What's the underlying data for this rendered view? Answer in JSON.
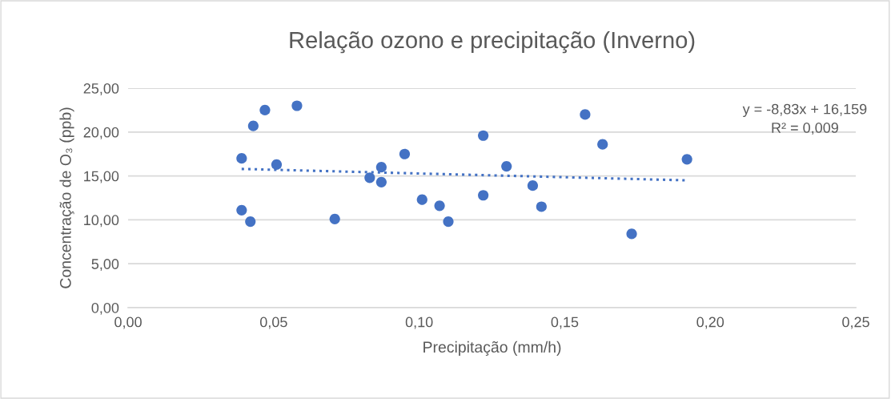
{
  "chart_data": {
    "type": "scatter",
    "title": "Relação ozono e precipitação (Inverno)",
    "xlabel": "Precipitação (mm/h)",
    "ylabel": "Concentração de O₃ (ppb)",
    "series": [
      {
        "color": "#4472c4",
        "marker": "circle",
        "x": [
          0.039,
          0.047,
          0.043,
          0.058,
          0.051,
          0.039,
          0.042,
          0.071,
          0.083,
          0.087,
          0.087,
          0.095,
          0.101,
          0.107,
          0.11,
          0.122,
          0.122,
          0.13,
          0.139,
          0.142,
          0.157,
          0.163,
          0.173,
          0.192
        ],
        "values": [
          17.0,
          22.5,
          20.7,
          23.0,
          16.3,
          11.1,
          9.8,
          10.1,
          14.8,
          16.0,
          14.3,
          17.5,
          12.3,
          11.6,
          9.8,
          19.6,
          12.8,
          16.1,
          13.9,
          11.5,
          22.0,
          18.6,
          8.4,
          16.9
        ]
      },
      {
        "type": "line",
        "color": "#4472c4",
        "line_style": "dotted",
        "x": [
          0.039,
          0.192
        ],
        "values": [
          15.8,
          14.5
        ]
      }
    ],
    "annotations": [
      "y = -8,83x + 16,159\nR² = 0,009"
    ],
    "xlim": [
      0,
      0.25
    ],
    "ylim": [
      0,
      25
    ],
    "xticks": [
      {
        "value": 0,
        "label": "0,00"
      },
      {
        "value": 0.05,
        "label": "0,05"
      },
      {
        "value": 0.1,
        "label": "0,10"
      },
      {
        "value": 0.15,
        "label": "0,15"
      },
      {
        "value": 0.2,
        "label": "0,20"
      },
      {
        "value": 0.25,
        "label": "0,25"
      }
    ],
    "yticks": [
      {
        "value": 0,
        "label": "0,00"
      },
      {
        "value": 5,
        "label": "5,00"
      },
      {
        "value": 10,
        "label": "10,00"
      },
      {
        "value": 15,
        "label": "15,00"
      },
      {
        "value": 20,
        "label": "20,00"
      },
      {
        "value": 25,
        "label": "25,00"
      }
    ],
    "grid": "y"
  }
}
